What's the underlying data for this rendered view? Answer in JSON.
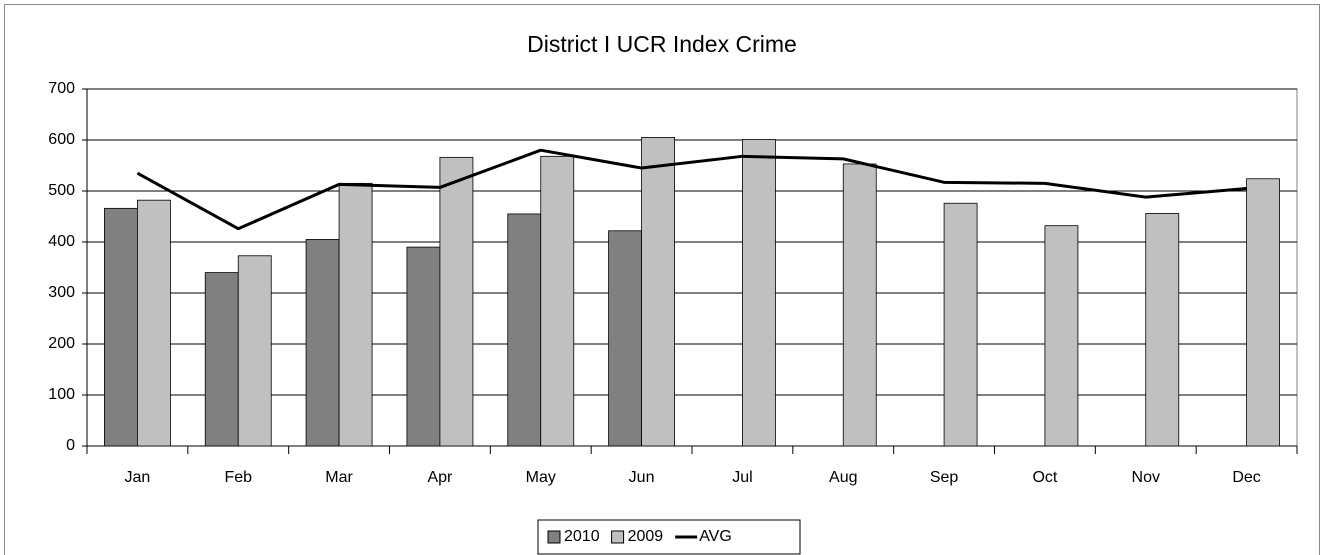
{
  "chart_data": {
    "type": "bar",
    "title": "District I UCR Index Crime",
    "categories": [
      "Jan",
      "Feb",
      "Mar",
      "Apr",
      "May",
      "Jun",
      "Jul",
      "Aug",
      "Sep",
      "Oct",
      "Nov",
      "Dec"
    ],
    "series": [
      {
        "name": "2010",
        "color": "#808080",
        "type": "bar",
        "values": [
          466,
          340,
          405,
          390,
          455,
          422,
          null,
          null,
          null,
          null,
          null,
          null
        ]
      },
      {
        "name": "2009",
        "color": "#c0c0c0",
        "type": "bar",
        "values": [
          482,
          373,
          515,
          566,
          568,
          605,
          601,
          553,
          476,
          432,
          456,
          524
        ]
      },
      {
        "name": "AVG",
        "color": "#000000",
        "type": "line",
        "values": [
          535,
          426,
          513,
          507,
          580,
          545,
          568,
          563,
          517,
          515,
          488,
          505
        ]
      }
    ],
    "ylim": [
      0,
      700
    ],
    "yticks": [
      0,
      100,
      200,
      300,
      400,
      500,
      600,
      700
    ],
    "grid": true,
    "legend": "bottom"
  }
}
